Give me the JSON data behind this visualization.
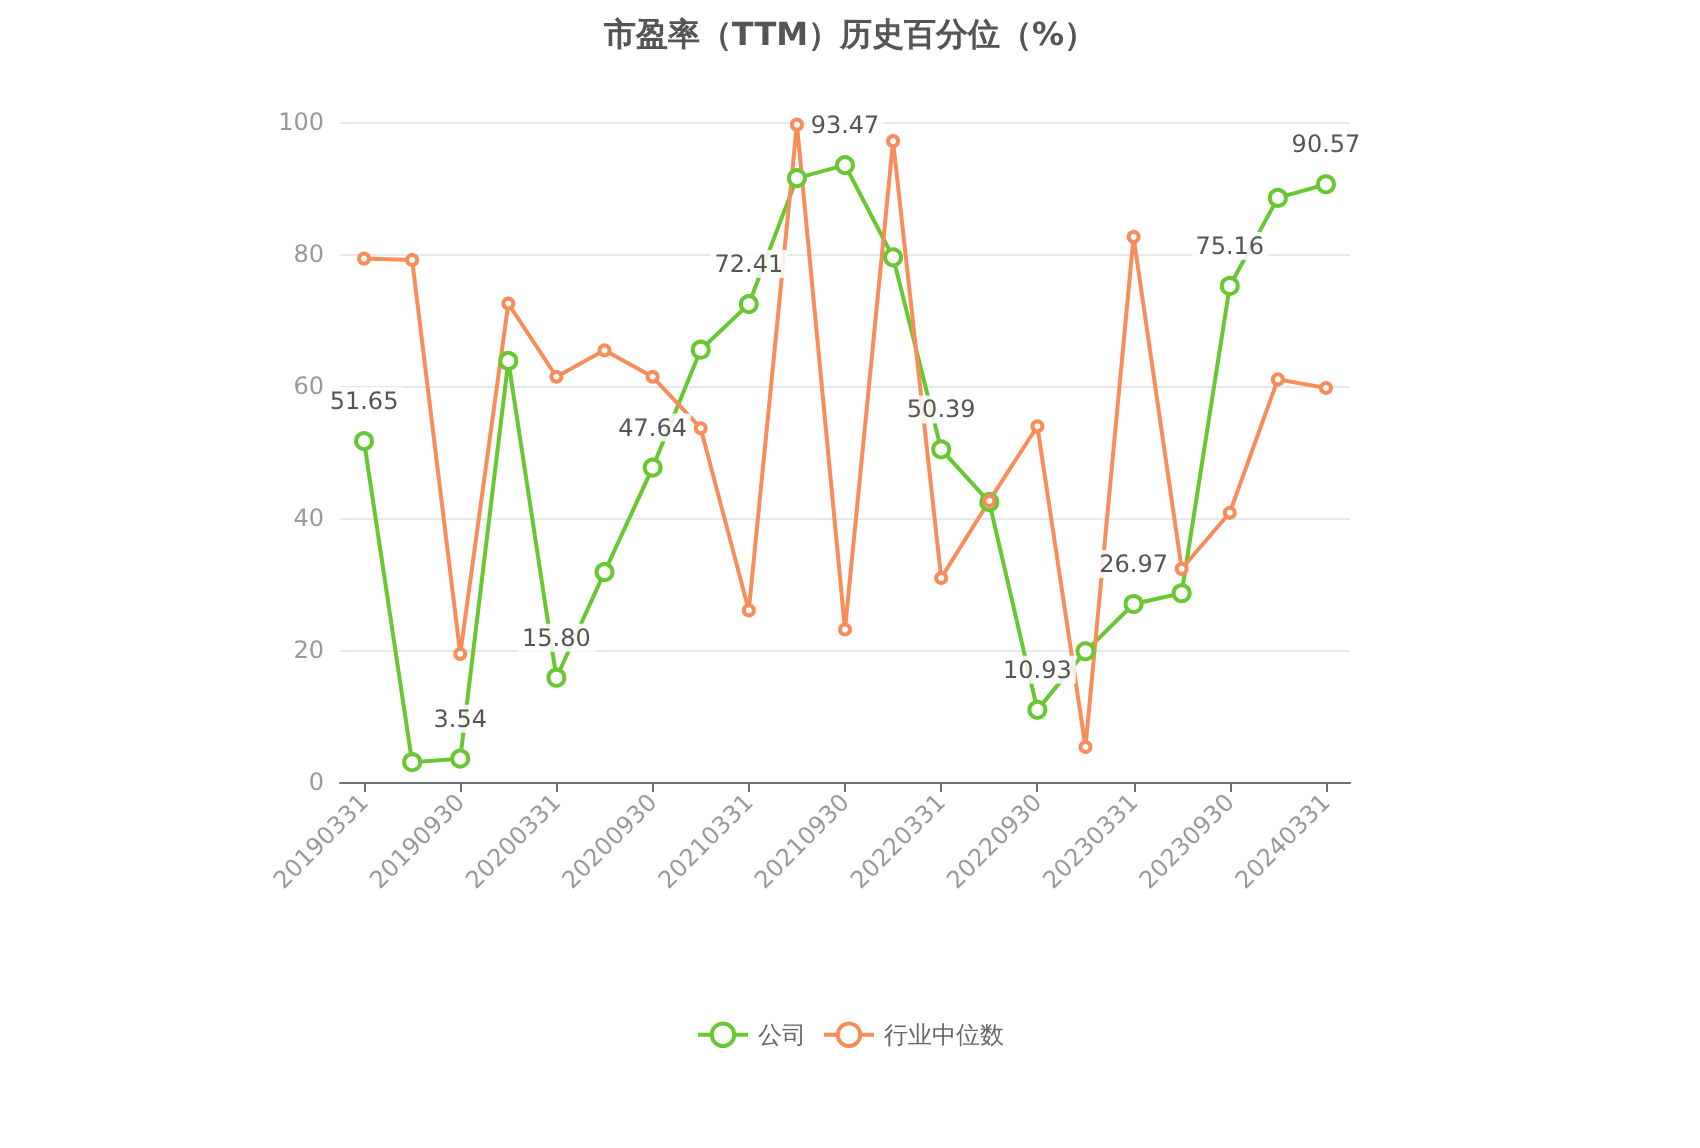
{
  "chart_data": {
    "type": "line",
    "title": "市盈率（TTM）历史百分位（%）",
    "categories": [
      "20190331",
      null,
      "20190930",
      null,
      "20200331",
      null,
      "20200930",
      null,
      "20210331",
      null,
      "20210930",
      null,
      "20220331",
      null,
      "20220930",
      null,
      "20230331",
      null,
      "20230930",
      null,
      "20240331"
    ],
    "series": [
      {
        "name": "公司",
        "color": "#67c832",
        "values": [
          51.65,
          3.0,
          3.54,
          63.8,
          15.8,
          31.8,
          47.64,
          65.5,
          72.41,
          91.5,
          93.47,
          79.5,
          50.39,
          42.4,
          10.93,
          19.8,
          26.97,
          28.6,
          75.16,
          88.5,
          90.57
        ],
        "value_labels": [
          "51.65",
          null,
          "3.54",
          null,
          "15.80",
          null,
          "47.64",
          null,
          "72.41",
          null,
          "93.47",
          null,
          "50.39",
          null,
          "10.93",
          null,
          "26.97",
          null,
          "75.16",
          null,
          "90.57"
        ]
      },
      {
        "name": "行业中位数",
        "color": "#f88d5a",
        "values": [
          79.3,
          79.1,
          19.4,
          72.5,
          61.4,
          65.4,
          61.4,
          53.6,
          26.0,
          99.6,
          23.1,
          97.1,
          30.9,
          42.6,
          53.9,
          5.3,
          82.6,
          32.3,
          40.8,
          61.0,
          59.7
        ]
      }
    ],
    "ylim": [
      0,
      100
    ],
    "yticks": [
      0,
      20,
      40,
      60,
      80,
      100
    ],
    "grid": "y",
    "legend": "bottom",
    "marker": "circle",
    "line_style": "solid"
  }
}
